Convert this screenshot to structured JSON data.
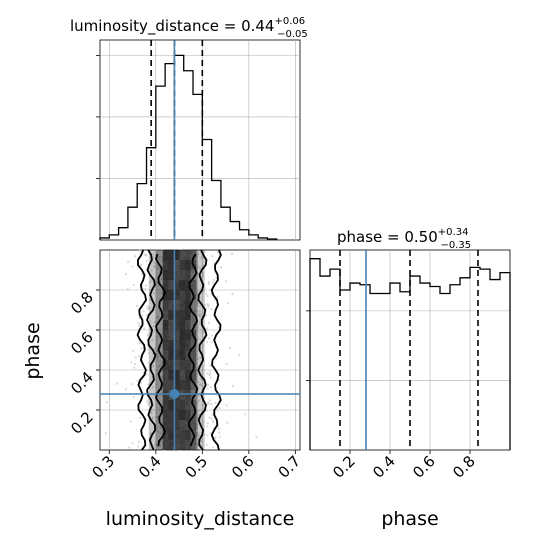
{
  "chart_data": [
    {
      "panel": "luminosity_distance-marginal",
      "type": "histogram",
      "title": {
        "param": "luminosity_distance",
        "value": "0.44",
        "plus": "+0.06",
        "minus": "−0.05"
      },
      "x_range": [
        0.28,
        0.71
      ],
      "bins": {
        "edges": [
          0.28,
          0.3,
          0.32,
          0.34,
          0.36,
          0.38,
          0.4,
          0.42,
          0.44,
          0.46,
          0.48,
          0.5,
          0.52,
          0.54,
          0.56,
          0.58,
          0.6,
          0.62,
          0.64,
          0.66
        ],
        "counts": [
          2,
          5,
          12,
          32,
          55,
          90,
          150,
          172,
          180,
          165,
          142,
          98,
          58,
          32,
          18,
          10,
          5,
          2,
          1
        ]
      },
      "y_range": [
        0,
        195
      ],
      "quantiles": [
        0.39,
        0.44,
        0.5
      ],
      "truth": 0.44
    },
    {
      "panel": "phase-marginal",
      "type": "histogram",
      "title": {
        "param": "phase",
        "value": "0.50",
        "plus": "+0.34",
        "minus": "−0.35"
      },
      "x_range": [
        0.0,
        1.0
      ],
      "bins": {
        "edges": [
          0.0,
          0.05,
          0.1,
          0.15,
          0.2,
          0.25,
          0.3,
          0.35,
          0.4,
          0.45,
          0.5,
          0.55,
          0.6,
          0.65,
          0.7,
          0.75,
          0.8,
          0.85,
          0.9,
          0.95,
          1.0
        ],
        "counts": [
          110,
          100,
          104,
          92,
          96,
          95,
          90,
          90,
          96,
          91,
          100,
          96,
          94,
          90,
          95,
          99,
          105,
          104,
          98,
          102
        ]
      },
      "y_range": [
        0,
        115
      ],
      "quantiles": [
        0.15,
        0.5,
        0.84
      ],
      "truth": 0.28
    },
    {
      "panel": "luminosity_distance-vs-phase",
      "type": "scatter",
      "x_range": [
        0.28,
        0.71
      ],
      "y_range": [
        0.0,
        1.0
      ],
      "truth": {
        "x": 0.44,
        "y": 0.28
      },
      "contours": [
        {
          "level": "outer",
          "x": [
            0.37,
            0.53
          ],
          "y": [
            0.0,
            1.0
          ]
        },
        {
          "level": "middle",
          "x": [
            0.39,
            0.5
          ],
          "y": [
            0.0,
            1.0
          ]
        },
        {
          "level": "inner",
          "x": [
            0.41,
            0.48
          ],
          "y": [
            0.02,
            0.98
          ]
        }
      ]
    }
  ],
  "axes": {
    "x_bottom_left": {
      "label": "luminosity_distance",
      "ticks": [
        "0.3",
        "0.4",
        "0.5",
        "0.6",
        "0.7"
      ],
      "tick_values": [
        0.3,
        0.4,
        0.5,
        0.6,
        0.7
      ]
    },
    "y_left": {
      "label": "phase",
      "ticks": [
        "0.2",
        "0.4",
        "0.6",
        "0.8"
      ],
      "tick_values": [
        0.2,
        0.4,
        0.6,
        0.8
      ]
    },
    "x_bottom_right": {
      "label": "phase",
      "ticks": [
        "0.2",
        "0.4",
        "0.6",
        "0.8"
      ],
      "tick_values": [
        0.2,
        0.4,
        0.6,
        0.8
      ]
    }
  },
  "colors": {
    "truth": "#4682b4",
    "hist": "#000000",
    "grid": "#b0b0b0",
    "points": "#c8c8c8"
  }
}
